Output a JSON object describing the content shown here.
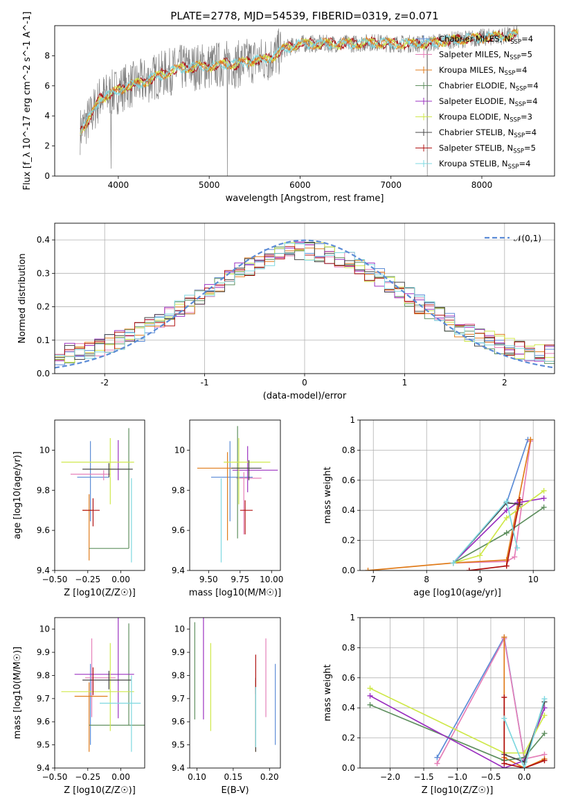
{
  "figure": {
    "title": "PLATE=2778, MJD=54539, FIBERID=0319, z=0.071"
  },
  "colors": {
    "Chabrier MILES": "#5b8bd6",
    "Salpeter MILES": "#e57fb8",
    "Kroupa MILES": "#e07b1a",
    "Chabrier ELODIE": "#5f8f5f",
    "Salpeter ELODIE": "#9b30c0",
    "Kroupa ELODIE": "#cfe84a",
    "Chabrier STELIB": "#444444",
    "Salpeter STELIB": "#b01010",
    "Kroupa STELIB": "#7ed8e0",
    "data": "#808080",
    "normal_curve": "#5b8bd6"
  },
  "chart_data": [
    {
      "id": "spectrum",
      "type": "line",
      "title": "PLATE=2778, MJD=54539, FIBERID=0319, z=0.071",
      "xlabel": "wavelength [Angstrom, rest frame]",
      "ylabel": "Flux [f_λ 10^-17 erg cm^-2 s^-1 A^-1]",
      "xlim": [
        3300,
        8800
      ],
      "ylim": [
        0,
        10
      ],
      "xticks": [
        4000,
        5000,
        6000,
        7000,
        8000
      ],
      "yticks": [
        0,
        2,
        4,
        6,
        8
      ],
      "grid": false,
      "legend": "upper right",
      "legend_entries": [
        {
          "name": "Chabrier MILES, N_SSP=4"
        },
        {
          "name": "Salpeter MILES, N_SSP=5"
        },
        {
          "name": "Kroupa MILES, N_SSP=4"
        },
        {
          "name": "Chabrier ELODIE, N_SSP=4"
        },
        {
          "name": "Salpeter ELODIE, N_SSP=4"
        },
        {
          "name": "Kroupa ELODIE, N_SSP=3"
        },
        {
          "name": "Chabrier STELIB, N_SSP=4"
        },
        {
          "name": "Salpeter STELIB, N_SSP=5"
        },
        {
          "name": "Kroupa STELIB, N_SSP=4"
        }
      ],
      "continuum_x": [
        3580,
        3700,
        3800,
        3900,
        4000,
        4100,
        4200,
        4300,
        4400,
        4500,
        4600,
        4700,
        4800,
        4900,
        5000,
        5100,
        5200,
        5300,
        5400,
        5500,
        5600,
        5700,
        5800,
        5900,
        6000,
        6200,
        6400,
        6600,
        6800,
        7000,
        7200,
        7400,
        7600,
        7800,
        8000,
        8200,
        8400
      ],
      "continuum_y": [
        3.0,
        4.0,
        5.2,
        5.4,
        5.7,
        6.0,
        6.1,
        6.3,
        6.6,
        6.8,
        7.0,
        7.2,
        7.2,
        7.3,
        7.3,
        7.4,
        7.5,
        7.4,
        7.6,
        7.7,
        7.7,
        7.9,
        8.4,
        8.6,
        8.8,
        8.8,
        8.8,
        8.8,
        8.9,
        8.8,
        8.8,
        8.8,
        9.0,
        9.1,
        9.2,
        9.3,
        9.4
      ]
    },
    {
      "id": "residuals",
      "type": "step",
      "xlabel": "(data-model)/error",
      "ylabel": "Normed distribution",
      "xlim": [
        -2.5,
        2.5
      ],
      "ylim": [
        0,
        0.45
      ],
      "xticks": [
        -2,
        -1,
        0,
        1,
        2
      ],
      "yticks": [
        0.0,
        0.1,
        0.2,
        0.3,
        0.4
      ],
      "grid": true,
      "legend": "upper right",
      "legend_label": "𝒩(0,1)",
      "normal_curve": "N(0,1)"
    },
    {
      "id": "age_vs_Z",
      "type": "errorbar",
      "xlabel": "Z [log10(Z/Z☉)]",
      "ylabel": "age  [log10(age/yr)]",
      "xlim": [
        -0.5,
        0.18
      ],
      "ylim": [
        9.4,
        10.15
      ],
      "xticks": [
        -0.5,
        -0.25,
        0.0
      ],
      "xticklabels": [
        "−0.50",
        "−0.25",
        "0.00"
      ],
      "yticks": [
        9.4,
        9.6,
        9.8,
        10.0
      ],
      "grid": false,
      "points": [
        {
          "series": "Chabrier MILES",
          "x": -0.23,
          "xerr": [
            0.1,
            0.14
          ],
          "y": 9.865,
          "yerr": [
            0.22,
            0.18
          ]
        },
        {
          "series": "Salpeter MILES",
          "x": -0.13,
          "xerr": [
            0.25,
            0.05
          ],
          "y": 9.88,
          "yerr": [
            0.03,
            0.02
          ]
        },
        {
          "series": "Kroupa MILES",
          "x": -0.24,
          "xerr": [
            0.05,
            0.02
          ],
          "y": 9.7,
          "yerr": [
            0.25,
            0.08
          ]
        },
        {
          "series": "Chabrier ELODIE",
          "x": 0.06,
          "xerr": [
            0.3,
            0.0
          ],
          "y": 9.51,
          "yerr": [
            0.0,
            0.6
          ]
        },
        {
          "series": "Salpeter ELODIE",
          "x": -0.02,
          "xerr": [
            0.0,
            0.0
          ],
          "y": 9.93,
          "yerr": [
            0.08,
            0.12
          ]
        },
        {
          "series": "Kroupa ELODIE",
          "x": -0.08,
          "xerr": [
            0.37,
            0.18
          ],
          "y": 9.94,
          "yerr": [
            0.21,
            0.12
          ]
        },
        {
          "series": "Chabrier STELIB",
          "x": -0.09,
          "xerr": [
            0.2,
            0.18
          ],
          "y": 9.905,
          "yerr": [
            0.04,
            0.03
          ]
        },
        {
          "series": "Salpeter STELIB",
          "x": -0.21,
          "xerr": [
            0.08,
            0.05
          ],
          "y": 9.7,
          "yerr": [
            0.08,
            0.06
          ]
        },
        {
          "series": "Kroupa STELIB",
          "x": 0.08,
          "xerr": [
            0.0,
            0.0
          ],
          "y": 9.5,
          "yerr": [
            0.06,
            0.36
          ]
        }
      ]
    },
    {
      "id": "age_vs_mass",
      "type": "errorbar",
      "xlabel": "mass [log10(M/M☉)]",
      "ylabel": "",
      "xlim": [
        9.35,
        10.07
      ],
      "ylim": [
        9.4,
        10.15
      ],
      "xticks": [
        9.5,
        9.75,
        10.0
      ],
      "xticklabels": [
        "9.50",
        "9.75",
        "10.00"
      ],
      "yticks": [
        9.4,
        9.6,
        9.8,
        10.0
      ],
      "grid": false,
      "points": [
        {
          "series": "Chabrier MILES",
          "x": 9.67,
          "xerr": [
            0.15,
            0.18
          ],
          "y": 9.865,
          "yerr": [
            0.22,
            0.18
          ]
        },
        {
          "series": "Salpeter MILES",
          "x": 9.78,
          "xerr": [
            0.06,
            0.14
          ],
          "y": 9.86,
          "yerr": [
            0.28,
            0.03
          ]
        },
        {
          "series": "Kroupa MILES",
          "x": 9.65,
          "xerr": [
            0.24,
            0.16
          ],
          "y": 9.91,
          "yerr": [
            0.36,
            0.08
          ]
        },
        {
          "series": "Chabrier ELODIE",
          "x": 9.73,
          "xerr": [
            0.0,
            0.0
          ],
          "y": 9.8,
          "yerr": [
            0.24,
            0.32
          ]
        },
        {
          "series": "Salpeter ELODIE",
          "x": 9.81,
          "xerr": [
            0.12,
            0.24
          ],
          "y": 9.9,
          "yerr": [
            0.11,
            0.12
          ]
        },
        {
          "series": "Kroupa ELODIE",
          "x": 9.74,
          "xerr": [
            0.12,
            0.25
          ],
          "y": 9.94,
          "yerr": [
            0.21,
            0.12
          ]
        },
        {
          "series": "Chabrier STELIB",
          "x": 9.82,
          "xerr": [
            0.14,
            0.1
          ],
          "y": 9.91,
          "yerr": [
            0.06,
            0.04
          ]
        },
        {
          "series": "Salpeter STELIB",
          "x": 9.79,
          "xerr": [
            0.04,
            0.06
          ],
          "y": 9.7,
          "yerr": [
            0.12,
            0.05
          ]
        },
        {
          "series": "Kroupa STELIB",
          "x": 9.6,
          "xerr": [
            0.0,
            0.0
          ],
          "y": 9.7,
          "yerr": [
            0.26,
            0.16
          ]
        }
      ]
    },
    {
      "id": "mass_weight_vs_age",
      "type": "line",
      "xlabel": "age  [log10(age/yr)]",
      "ylabel": "mass weight",
      "xlim": [
        6.75,
        10.4
      ],
      "ylim": [
        0,
        1
      ],
      "xticks": [
        7,
        8,
        9,
        10
      ],
      "yticks": [
        0.0,
        0.2,
        0.4,
        0.6,
        0.8,
        1.0
      ],
      "grid": true,
      "series": [
        {
          "series": "Chabrier MILES",
          "x": [
            8.5,
            9.5,
            9.9
          ],
          "y": [
            0.05,
            0.45,
            0.87
          ]
        },
        {
          "series": "Salpeter MILES",
          "x": [
            8.5,
            9.5,
            9.65,
            9.95
          ],
          "y": [
            0.05,
            0.06,
            0.09,
            0.86
          ]
        },
        {
          "series": "Kroupa MILES",
          "x": [
            6.9,
            8.5,
            9.5,
            9.95
          ],
          "y": [
            0.0,
            0.05,
            0.07,
            0.87
          ]
        },
        {
          "series": "Chabrier ELODIE",
          "x": [
            8.5,
            9.5,
            10.2
          ],
          "y": [
            0.05,
            0.25,
            0.42
          ]
        },
        {
          "series": "Salpeter ELODIE",
          "x": [
            8.5,
            9.5,
            9.7,
            10.2
          ],
          "y": [
            0.05,
            0.4,
            0.45,
            0.48
          ]
        },
        {
          "series": "Kroupa ELODIE",
          "x": [
            8.5,
            9.0,
            9.5,
            10.2
          ],
          "y": [
            0.05,
            0.1,
            0.35,
            0.53
          ]
        },
        {
          "series": "Chabrier STELIB",
          "x": [
            8.5,
            9.5,
            9.75
          ],
          "y": [
            0.05,
            0.45,
            0.44
          ]
        },
        {
          "series": "Salpeter STELIB",
          "x": [
            8.8,
            9.5,
            9.75
          ],
          "y": [
            0.0,
            0.03,
            0.47
          ]
        },
        {
          "series": "Kroupa STELIB",
          "x": [
            8.5,
            9.5,
            9.7
          ],
          "y": [
            0.05,
            0.46,
            0.15
          ]
        }
      ]
    },
    {
      "id": "mass_vs_Z",
      "type": "errorbar",
      "xlabel": "Z [log10(Z/Z☉)]",
      "ylabel": "mass [log10(M/M☉)]",
      "xlim": [
        -0.5,
        0.18
      ],
      "ylim": [
        9.4,
        10.05
      ],
      "xticks": [
        -0.5,
        -0.25,
        0.0
      ],
      "xticklabels": [
        "−0.50",
        "−0.25",
        "0.00"
      ],
      "yticks": [
        9.4,
        9.5,
        9.6,
        9.7,
        9.8,
        9.9,
        10.0
      ],
      "grid": false,
      "points": [
        {
          "series": "Chabrier MILES",
          "x": -0.23,
          "xerr": [
            0.0,
            0.0
          ],
          "y": 9.68,
          "yerr": [
            0.18,
            0.17
          ]
        },
        {
          "series": "Salpeter MILES",
          "x": -0.22,
          "xerr": [
            0.05,
            0.18
          ],
          "y": 9.79,
          "yerr": [
            0.17,
            0.17
          ]
        },
        {
          "series": "Kroupa MILES",
          "x": -0.24,
          "xerr": [
            0.11,
            0.14
          ],
          "y": 9.71,
          "yerr": [
            0.24,
            0.06
          ]
        },
        {
          "series": "Chabrier ELODIE",
          "x": 0.06,
          "xerr": [
            0.3,
            0.12
          ],
          "y": 9.585,
          "yerr": [
            0.0,
            0.44
          ]
        },
        {
          "series": "Salpeter ELODIE",
          "x": -0.02,
          "xerr": [
            0.33,
            0.12
          ],
          "y": 9.805,
          "yerr": [
            0.19,
            0.25
          ]
        },
        {
          "series": "Kroupa ELODIE",
          "x": -0.08,
          "xerr": [
            0.37,
            0.18
          ],
          "y": 9.73,
          "yerr": [
            0.17,
            0.21
          ]
        },
        {
          "series": "Chabrier STELIB",
          "x": -0.09,
          "xerr": [
            0.2,
            0.17
          ],
          "y": 9.78,
          "yerr": [
            0.04,
            0.04
          ]
        },
        {
          "series": "Salpeter STELIB",
          "x": -0.21,
          "xerr": [
            0.0,
            0.0
          ],
          "y": 9.765,
          "yerr": [
            0.05,
            0.07
          ]
        },
        {
          "series": "Kroupa STELIB",
          "x": 0.08,
          "xerr": [
            0.24,
            0.07
          ],
          "y": 9.68,
          "yerr": [
            0.21,
            0.12
          ]
        }
      ]
    },
    {
      "id": "mass_vs_ebv",
      "type": "errorbar",
      "xlabel": "E(B-V)",
      "ylabel": "",
      "xlim": [
        0.09,
        0.215
      ],
      "ylim": [
        9.4,
        10.05
      ],
      "xticks": [
        0.1,
        0.15,
        0.2
      ],
      "xticklabels": [
        "0.10",
        "0.15",
        "0.20"
      ],
      "yticks": [
        9.4,
        9.5,
        9.6,
        9.7,
        9.8,
        9.9,
        10.0
      ],
      "grid": false,
      "points": [
        {
          "series": "Chabrier MILES",
          "x": 0.208,
          "xerr": [
            0.0,
            0.0
          ],
          "y": 9.68,
          "yerr": [
            0.18,
            0.17
          ]
        },
        {
          "series": "Salpeter MILES",
          "x": 0.195,
          "xerr": [
            0.0,
            0.0
          ],
          "y": 9.79,
          "yerr": [
            0.17,
            0.17
          ]
        },
        {
          "series": "Kroupa MILES",
          "x": 0.181,
          "xerr": [
            0.0,
            0.0
          ],
          "y": 9.62,
          "yerr": [
            0.15,
            0.16
          ]
        },
        {
          "series": "Chabrier ELODIE",
          "x": 0.097,
          "xerr": [
            0.0,
            0.0
          ],
          "y": 9.8,
          "yerr": [
            0.19,
            0.23
          ]
        },
        {
          "series": "Salpeter ELODIE",
          "x": 0.109,
          "xerr": [
            0.0,
            0.0
          ],
          "y": 9.8,
          "yerr": [
            0.19,
            0.26
          ]
        },
        {
          "series": "Kroupa ELODIE",
          "x": 0.119,
          "xerr": [
            0.0,
            0.0
          ],
          "y": 9.75,
          "yerr": [
            0.19,
            0.19
          ]
        },
        {
          "series": "Chabrier STELIB",
          "x": 0.181,
          "xerr": [
            0.0,
            0.0
          ],
          "y": 9.78,
          "yerr": [
            0.31,
            0.01
          ]
        },
        {
          "series": "Salpeter STELIB",
          "x": 0.181,
          "xerr": [
            0.0,
            0.0
          ],
          "y": 9.78,
          "yerr": [
            0.06,
            0.11
          ]
        },
        {
          "series": "Kroupa STELIB",
          "x": 0.181,
          "xerr": [
            0.0,
            0.0
          ],
          "y": 9.62,
          "yerr": [
            0.13,
            0.13
          ]
        }
      ]
    },
    {
      "id": "mass_weight_vs_Z",
      "type": "line",
      "xlabel": "Z [log10(Z/Z☉)]",
      "ylabel": "mass weight",
      "xlim": [
        -2.45,
        0.45
      ],
      "ylim": [
        0,
        1
      ],
      "xticks": [
        -2.0,
        -1.5,
        -1.0,
        -0.5,
        0.0
      ],
      "xticklabels": [
        "−2.0",
        "−1.5",
        "−1.0",
        "−0.5",
        "0.0"
      ],
      "yticks": [
        0.0,
        0.2,
        0.4,
        0.6,
        0.8,
        1.0
      ],
      "grid": true,
      "series": [
        {
          "series": "Chabrier MILES",
          "x": [
            -1.3,
            -0.3,
            0.0,
            0.3
          ],
          "y": [
            0.07,
            0.87,
            0.06,
            0.4
          ]
        },
        {
          "series": "Salpeter MILES",
          "x": [
            -1.3,
            -0.3,
            0.0,
            0.3
          ],
          "y": [
            0.03,
            0.86,
            0.06,
            0.09
          ]
        },
        {
          "series": "Kroupa MILES",
          "x": [
            -0.3,
            -0.3,
            0.0,
            0.3
          ],
          "y": [
            0.87,
            0.07,
            0.0,
            0.06
          ]
        },
        {
          "series": "Chabrier ELODIE",
          "x": [
            -2.3,
            -0.3,
            0.0,
            0.3
          ],
          "y": [
            0.42,
            0.05,
            0.07,
            0.23
          ]
        },
        {
          "series": "Salpeter ELODIE",
          "x": [
            -2.3,
            -0.3,
            0.0,
            0.3
          ],
          "y": [
            0.48,
            0.0,
            0.05,
            0.4
          ]
        },
        {
          "series": "Kroupa ELODIE",
          "x": [
            -2.3,
            -0.3,
            0.0,
            0.3
          ],
          "y": [
            0.53,
            0.1,
            0.1,
            0.35
          ]
        },
        {
          "series": "Chabrier STELIB",
          "x": [
            -0.3,
            0.0,
            0.3
          ],
          "y": [
            0.09,
            0.04,
            0.44
          ]
        },
        {
          "series": "Salpeter STELIB",
          "x": [
            -0.3,
            -0.3,
            0.0,
            0.3
          ],
          "y": [
            0.47,
            0.03,
            0.0,
            0.05
          ]
        },
        {
          "series": "Kroupa STELIB",
          "x": [
            -0.3,
            0.0,
            0.3
          ],
          "y": [
            0.33,
            0.0,
            0.46
          ]
        }
      ]
    }
  ]
}
